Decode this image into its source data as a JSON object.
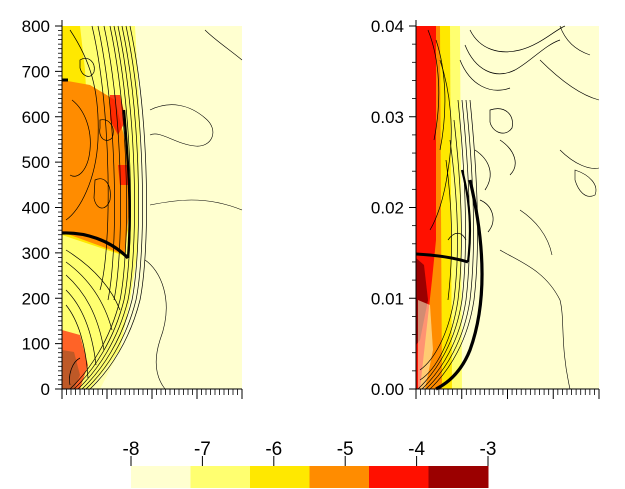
{
  "chart_data": [
    {
      "type": "heatmap",
      "panel": "left",
      "title": "",
      "xlabel": "",
      "ylabel": "",
      "ylim": [
        0,
        800
      ],
      "y_ticks": [
        "0",
        "100",
        "200",
        "300",
        "400",
        "500",
        "600",
        "700",
        "800"
      ],
      "x_tick_labels": "none",
      "overlay": "contour lines",
      "values_shown": "log-scale field levels from -8 to -3 (colorbar)"
    },
    {
      "type": "heatmap",
      "panel": "right",
      "title": "",
      "xlabel": "",
      "ylabel": "",
      "ylim": [
        0.0,
        0.04
      ],
      "y_ticks": [
        "0.00",
        "0.01",
        "0.02",
        "0.03",
        "0.04"
      ],
      "x_tick_labels": "none",
      "overlay": "contour lines",
      "values_shown": "log-scale field levels from -8 to -3 (colorbar)"
    }
  ],
  "colorbar": {
    "labels": [
      "-8",
      "-7",
      "-6",
      "-5",
      "-4",
      "-3"
    ],
    "colors": [
      "#FFFFD0",
      "#FFFF70",
      "#FFE800",
      "#FF8C00",
      "#FF1000",
      "#9B0000"
    ]
  }
}
